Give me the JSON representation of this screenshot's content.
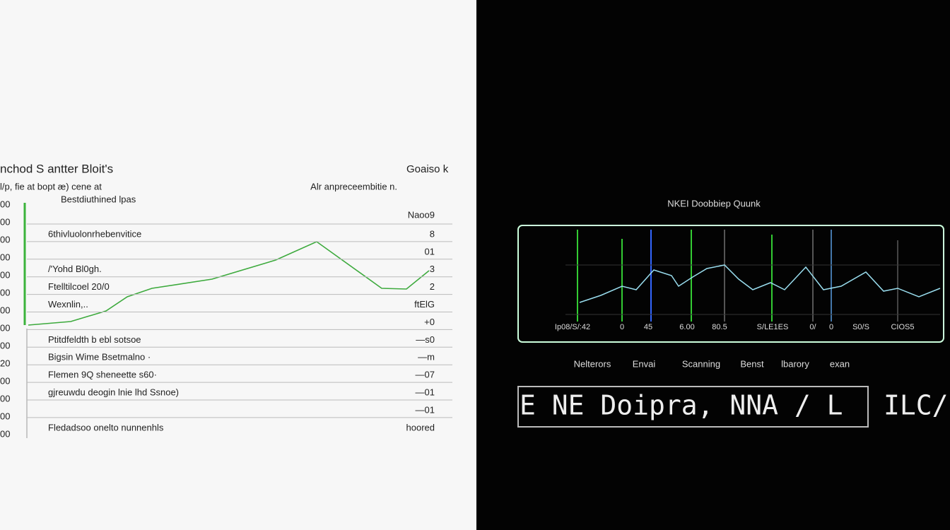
{
  "left_panel": {
    "title": "nchod S antter Bloit's",
    "corner_label": "Goaiso k",
    "subtitle": "l/p, fie at bopt æ) cene at",
    "note": "Alr anpreceembitie n.",
    "header": "Bestdiuthined lpas",
    "header_value": "Naoo9",
    "axis_labels": [
      "00",
      "00",
      "00",
      "00",
      "00",
      "00",
      "00",
      "00",
      "00",
      "20",
      "00",
      "00",
      "00",
      "00"
    ],
    "rows": [
      {
        "label": "6thivluolonrhebenvitice",
        "value": "8"
      },
      {
        "label": "",
        "value": "01"
      },
      {
        "label": "/'Yohd Bl0gh.",
        "value": "3"
      },
      {
        "label": "Ftelltilcoel 20/0",
        "value": "2"
      },
      {
        "label": "Wexnlin,..",
        "value": "ftElG"
      },
      {
        "label": "",
        "value": "+0"
      },
      {
        "label": "Ptitdfeldth b ebl sotsoe",
        "value": "—s0"
      },
      {
        "label": "Bigsin Wime Bsetmalno ·",
        "value": "—m"
      },
      {
        "label": "Flemen 9Q sheneette s60·",
        "value": "—07"
      },
      {
        "label": "gjreuwdu deogin lnie lhd Ssnoe)",
        "value": "—01"
      },
      {
        "label": "",
        "value": "—01"
      },
      {
        "label": "Fledadsoo onelto nunnenhls",
        "value": "hoored"
      }
    ]
  },
  "right_panel": {
    "title": "NKEI Doobbiep Quunk",
    "axis_labels": [
      "Ip08/S/:42",
      "0",
      "45",
      "6.00",
      "80.5",
      "S/LE1ES",
      "0/",
      "0",
      "S0/S",
      "CIOS5"
    ],
    "menu": [
      "Nelterors",
      "Envai",
      "Scanning",
      "Benst",
      "lbarory",
      "exan"
    ],
    "banner": "E NE Doipra, NNA / L",
    "banner_side": "ILC/"
  }
}
